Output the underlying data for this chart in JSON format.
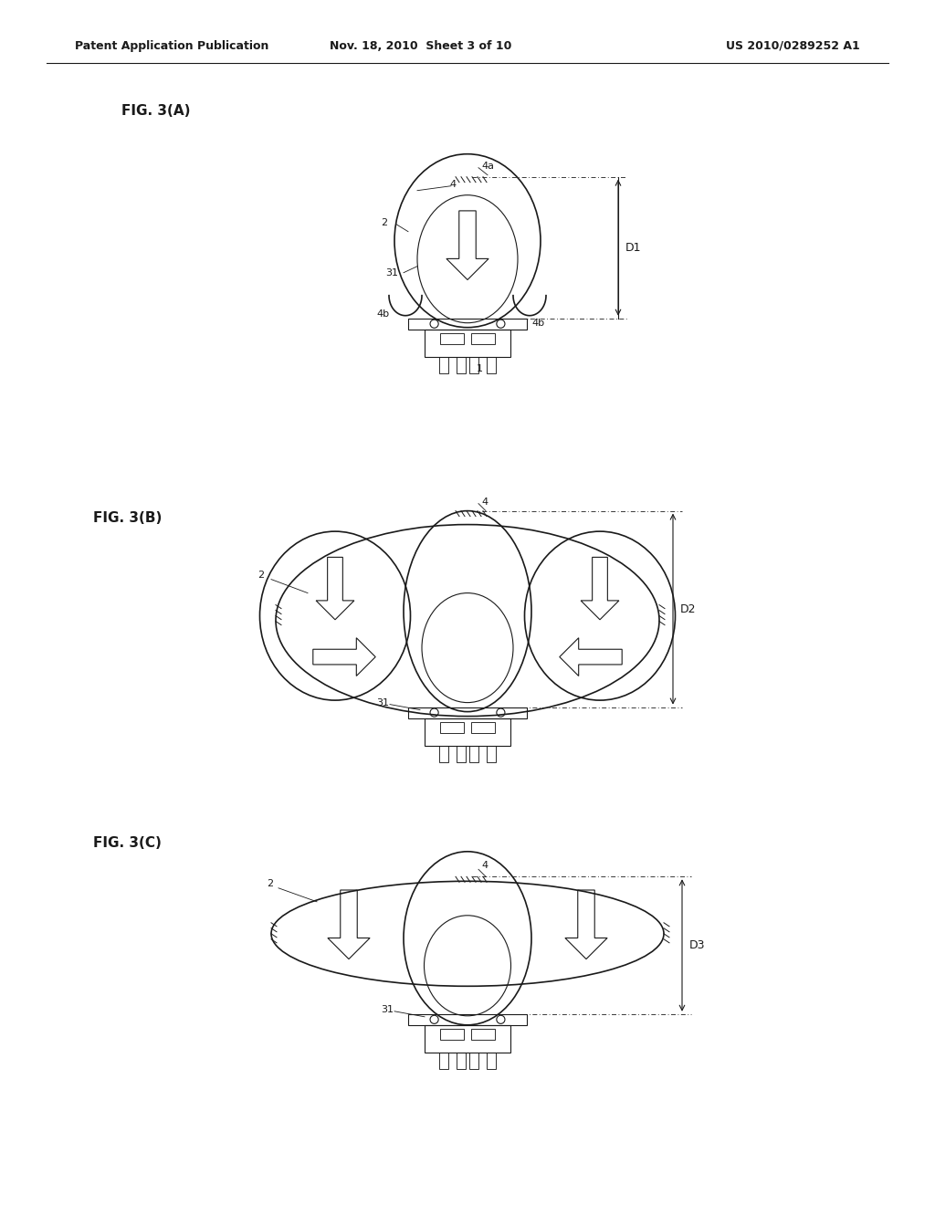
{
  "header_left": "Patent Application Publication",
  "header_mid": "Nov. 18, 2010  Sheet 3 of 10",
  "header_right": "US 2010/0289252 A1",
  "fig_labels": [
    "FIG. 3(A)",
    "FIG. 3(B)",
    "FIG. 3(C)"
  ],
  "dim_labels": [
    "D1",
    "D2",
    "D3"
  ],
  "bg_color": "#ffffff",
  "line_color": "#1a1a1a",
  "text_color": "#1a1a1a",
  "header_fontsize": 9,
  "fig_label_fontsize": 11,
  "part_label_fontsize": 8
}
